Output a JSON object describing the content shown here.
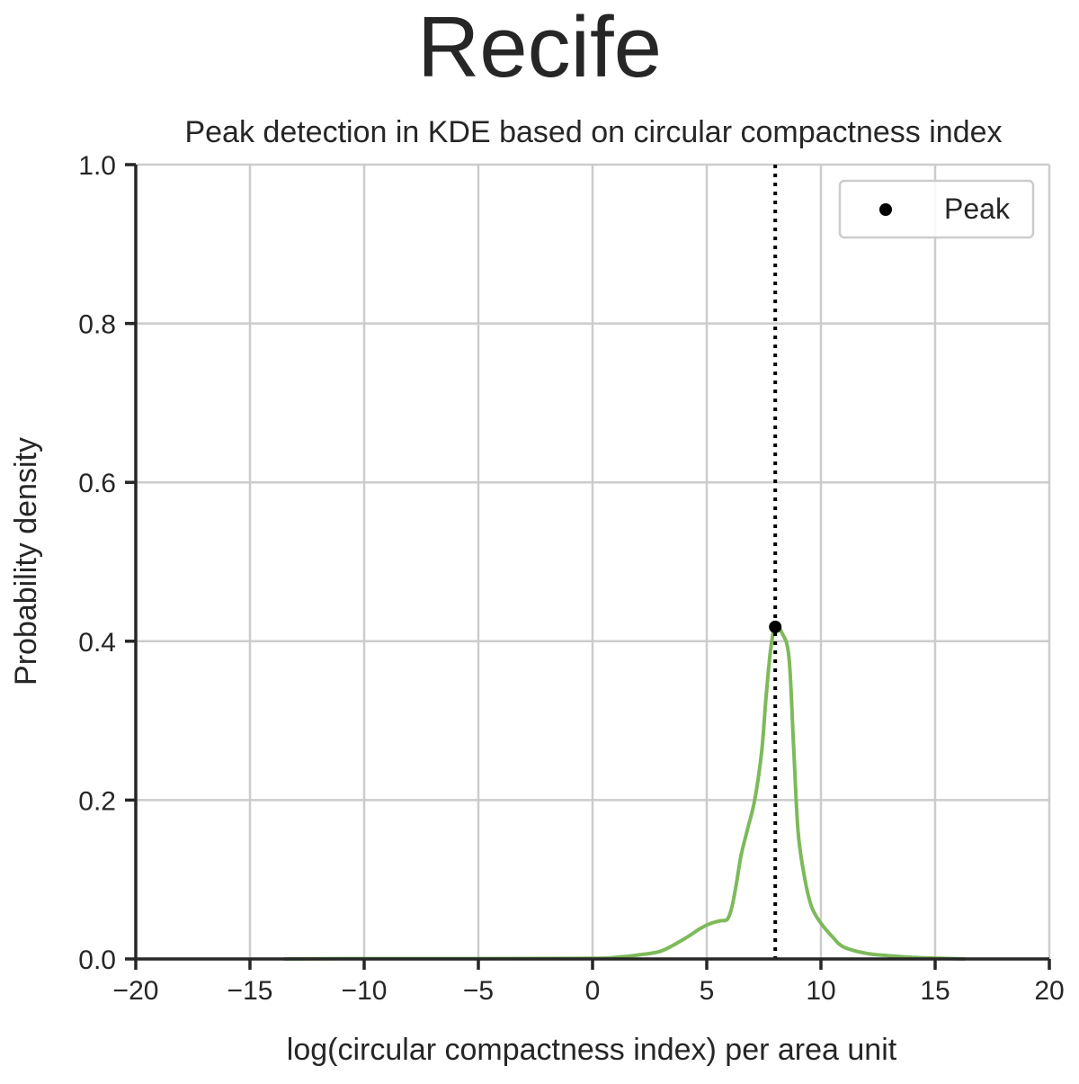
{
  "figure": {
    "suptitle": "Recife"
  },
  "chart_data": {
    "type": "line",
    "title": "Peak detection in KDE based on circular compactness index",
    "xlabel": "log(circular compactness index) per area unit",
    "ylabel": "Probability density",
    "xlim": [
      -20,
      20
    ],
    "ylim": [
      0,
      1.0
    ],
    "xticks": [
      -20,
      -15,
      -10,
      -5,
      0,
      5,
      10,
      15,
      20
    ],
    "xtick_labels": [
      "−20",
      "−15",
      "−10",
      "−5",
      "0",
      "5",
      "10",
      "15",
      "20"
    ],
    "yticks": [
      0.0,
      0.2,
      0.4,
      0.6,
      0.8,
      1.0
    ],
    "ytick_labels": [
      "0.0",
      "0.2",
      "0.4",
      "0.6",
      "0.8",
      "1.0"
    ],
    "grid": true,
    "legend": {
      "position": "top-right",
      "entries": [
        "Peak"
      ]
    },
    "series": [
      {
        "color": "#7dba5a",
        "x": [
          -13.5,
          -10,
          -5,
          0,
          1,
          2,
          3,
          4,
          4.7,
          5.2,
          5.6,
          5.9,
          6.1,
          6.3,
          6.5,
          6.8,
          7.1,
          7.4,
          7.6,
          7.8,
          8.0,
          8.3,
          8.6,
          8.8,
          9.0,
          9.3,
          9.6,
          10.0,
          10.5,
          11.0,
          12.0,
          13.0,
          14.0,
          15.0,
          16.3
        ],
        "y": [
          0.0,
          0.0005,
          0.0005,
          0.0008,
          0.002,
          0.005,
          0.01,
          0.025,
          0.038,
          0.045,
          0.048,
          0.05,
          0.065,
          0.095,
          0.13,
          0.165,
          0.2,
          0.26,
          0.33,
          0.39,
          0.418,
          0.41,
          0.38,
          0.27,
          0.16,
          0.1,
          0.065,
          0.045,
          0.028,
          0.015,
          0.007,
          0.004,
          0.002,
          0.001,
          0.0
        ]
      }
    ],
    "peak": {
      "x": 8.0,
      "y": 0.418,
      "color": "#000000",
      "label": "Peak"
    },
    "vline": {
      "x": 8.0,
      "style": "dotted",
      "color": "#000000"
    }
  }
}
